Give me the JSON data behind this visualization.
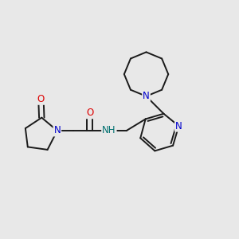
{
  "bg_color": "#e8e8e8",
  "bond_color": "#1a1a1a",
  "bond_width": 1.4,
  "atom_colors": {
    "N": "#0000cc",
    "O": "#dd0000",
    "NH": "#007070",
    "C": "#1a1a1a"
  },
  "font_size_atom": 8.5
}
